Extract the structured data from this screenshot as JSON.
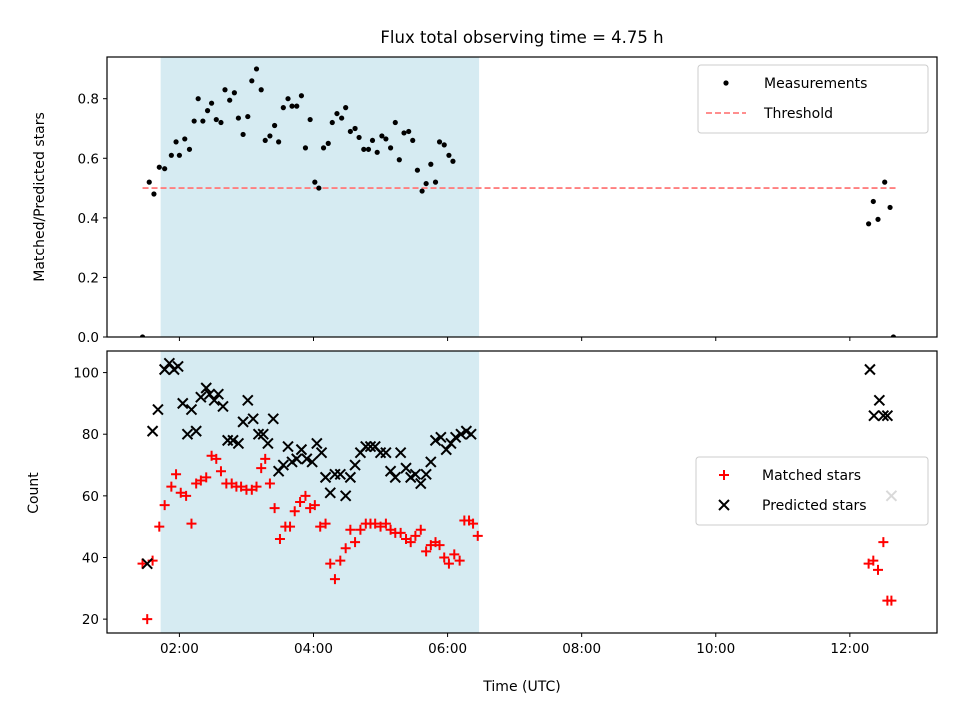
{
  "chart_data": [
    {
      "type": "scatter",
      "title": "Flux total observing time = 4.75 h",
      "xlabel": "",
      "ylabel": "Matched/Predicted stars",
      "xlim": [
        0.92,
        13.3
      ],
      "ylim": [
        0.0,
        0.94
      ],
      "yticks": [
        0.0,
        0.2,
        0.4,
        0.6,
        0.8
      ],
      "ytick_labels": [
        "0.0",
        "0.2",
        "0.4",
        "0.6",
        "0.8"
      ],
      "shaded_interval": {
        "start": 1.72,
        "end": 6.47,
        "color": "#add8e6"
      },
      "threshold": {
        "name": "Threshold",
        "value": 0.5,
        "x_range": [
          1.45,
          12.72
        ],
        "color": "#ff7f7f"
      },
      "legend_position": "top-right",
      "series": [
        {
          "name": "Measurements",
          "marker": "dot",
          "color": "#000000",
          "points": [
            [
              1.45,
              0.0
            ],
            [
              1.55,
              0.52
            ],
            [
              1.62,
              0.48
            ],
            [
              1.7,
              0.57
            ],
            [
              1.78,
              0.565
            ],
            [
              1.88,
              0.61
            ],
            [
              1.95,
              0.655
            ],
            [
              2.0,
              0.61
            ],
            [
              2.08,
              0.665
            ],
            [
              2.15,
              0.63
            ],
            [
              2.22,
              0.725
            ],
            [
              2.28,
              0.8
            ],
            [
              2.35,
              0.725
            ],
            [
              2.42,
              0.76
            ],
            [
              2.48,
              0.785
            ],
            [
              2.55,
              0.73
            ],
            [
              2.62,
              0.72
            ],
            [
              2.68,
              0.83
            ],
            [
              2.75,
              0.795
            ],
            [
              2.82,
              0.82
            ],
            [
              2.88,
              0.735
            ],
            [
              2.95,
              0.68
            ],
            [
              3.02,
              0.74
            ],
            [
              3.08,
              0.86
            ],
            [
              3.15,
              0.9
            ],
            [
              3.22,
              0.83
            ],
            [
              3.28,
              0.66
            ],
            [
              3.35,
              0.675
            ],
            [
              3.42,
              0.71
            ],
            [
              3.48,
              0.655
            ],
            [
              3.55,
              0.77
            ],
            [
              3.62,
              0.8
            ],
            [
              3.68,
              0.775
            ],
            [
              3.75,
              0.775
            ],
            [
              3.82,
              0.81
            ],
            [
              3.88,
              0.635
            ],
            [
              3.95,
              0.73
            ],
            [
              4.02,
              0.52
            ],
            [
              4.08,
              0.5
            ],
            [
              4.15,
              0.635
            ],
            [
              4.22,
              0.65
            ],
            [
              4.28,
              0.72
            ],
            [
              4.35,
              0.75
            ],
            [
              4.42,
              0.735
            ],
            [
              4.48,
              0.77
            ],
            [
              4.55,
              0.69
            ],
            [
              4.62,
              0.7
            ],
            [
              4.68,
              0.67
            ],
            [
              4.75,
              0.63
            ],
            [
              4.82,
              0.63
            ],
            [
              4.88,
              0.66
            ],
            [
              4.95,
              0.62
            ],
            [
              5.02,
              0.675
            ],
            [
              5.08,
              0.665
            ],
            [
              5.15,
              0.635
            ],
            [
              5.22,
              0.72
            ],
            [
              5.28,
              0.595
            ],
            [
              5.35,
              0.685
            ],
            [
              5.42,
              0.69
            ],
            [
              5.48,
              0.66
            ],
            [
              5.55,
              0.56
            ],
            [
              5.62,
              0.49
            ],
            [
              5.68,
              0.515
            ],
            [
              5.75,
              0.58
            ],
            [
              5.82,
              0.52
            ],
            [
              5.88,
              0.655
            ],
            [
              5.95,
              0.645
            ],
            [
              6.02,
              0.61
            ],
            [
              6.08,
              0.59
            ],
            [
              12.28,
              0.38
            ],
            [
              12.35,
              0.455
            ],
            [
              12.42,
              0.395
            ],
            [
              12.52,
              0.52
            ],
            [
              12.6,
              0.435
            ],
            [
              12.65,
              0.0
            ]
          ]
        }
      ]
    },
    {
      "type": "scatter",
      "title": "",
      "xlabel": "Time (UTC)",
      "ylabel": "Count",
      "xlim": [
        0.92,
        13.3
      ],
      "ylim": [
        15.5,
        107.0
      ],
      "xticks": [
        2,
        4,
        6,
        8,
        10,
        12
      ],
      "xtick_labels": [
        "02:00",
        "04:00",
        "06:00",
        "08:00",
        "10:00",
        "12:00"
      ],
      "yticks": [
        20,
        40,
        60,
        80,
        100
      ],
      "ytick_labels": [
        "20",
        "40",
        "60",
        "80",
        "100"
      ],
      "shaded_interval": {
        "start": 1.72,
        "end": 6.47,
        "color": "#add8e6"
      },
      "legend_position": "center-right",
      "series": [
        {
          "name": "Matched stars",
          "marker": "plus",
          "color": "#ff0000",
          "points": [
            [
              1.45,
              38
            ],
            [
              1.52,
              20
            ],
            [
              1.6,
              39
            ],
            [
              1.7,
              50
            ],
            [
              1.78,
              57
            ],
            [
              1.88,
              63
            ],
            [
              1.95,
              67
            ],
            [
              2.02,
              61
            ],
            [
              2.1,
              60
            ],
            [
              2.18,
              51
            ],
            [
              2.25,
              64
            ],
            [
              2.32,
              65
            ],
            [
              2.4,
              66
            ],
            [
              2.48,
              73
            ],
            [
              2.55,
              72
            ],
            [
              2.62,
              68
            ],
            [
              2.7,
              64
            ],
            [
              2.78,
              64
            ],
            [
              2.85,
              63
            ],
            [
              2.92,
              63
            ],
            [
              3.0,
              62
            ],
            [
              3.08,
              62
            ],
            [
              3.15,
              63
            ],
            [
              3.22,
              69
            ],
            [
              3.28,
              72
            ],
            [
              3.35,
              64
            ],
            [
              3.42,
              56
            ],
            [
              3.5,
              46
            ],
            [
              3.58,
              50
            ],
            [
              3.65,
              50
            ],
            [
              3.72,
              55
            ],
            [
              3.8,
              58
            ],
            [
              3.88,
              60
            ],
            [
              3.95,
              56
            ],
            [
              4.02,
              57
            ],
            [
              4.1,
              50
            ],
            [
              4.18,
              51
            ],
            [
              4.25,
              38
            ],
            [
              4.32,
              33
            ],
            [
              4.4,
              39
            ],
            [
              4.48,
              43
            ],
            [
              4.55,
              49
            ],
            [
              4.62,
              45
            ],
            [
              4.7,
              49
            ],
            [
              4.78,
              51
            ],
            [
              4.85,
              51
            ],
            [
              4.92,
              51
            ],
            [
              5.0,
              50
            ],
            [
              5.08,
              51
            ],
            [
              5.15,
              49
            ],
            [
              5.22,
              48
            ],
            [
              5.3,
              48
            ],
            [
              5.38,
              46
            ],
            [
              5.45,
              45
            ],
            [
              5.52,
              47
            ],
            [
              5.6,
              49
            ],
            [
              5.68,
              42
            ],
            [
              5.75,
              44
            ],
            [
              5.82,
              45
            ],
            [
              5.88,
              44
            ],
            [
              5.95,
              40
            ],
            [
              6.02,
              38
            ],
            [
              6.1,
              41
            ],
            [
              6.18,
              39
            ],
            [
              6.25,
              52
            ],
            [
              6.32,
              52
            ],
            [
              6.38,
              51
            ],
            [
              6.45,
              47
            ],
            [
              12.28,
              38
            ],
            [
              12.35,
              39
            ],
            [
              12.42,
              36
            ],
            [
              12.5,
              45
            ],
            [
              12.56,
              26
            ],
            [
              12.62,
              26
            ]
          ]
        },
        {
          "name": "Predicted stars",
          "marker": "x",
          "color": "#000000",
          "points": [
            [
              1.52,
              38
            ],
            [
              1.6,
              81
            ],
            [
              1.68,
              88
            ],
            [
              1.78,
              101
            ],
            [
              1.85,
              103
            ],
            [
              1.92,
              101
            ],
            [
              1.98,
              102
            ],
            [
              2.05,
              90
            ],
            [
              2.12,
              80
            ],
            [
              2.18,
              88
            ],
            [
              2.25,
              81
            ],
            [
              2.32,
              92
            ],
            [
              2.4,
              95
            ],
            [
              2.45,
              93
            ],
            [
              2.52,
              91
            ],
            [
              2.58,
              93
            ],
            [
              2.65,
              89
            ],
            [
              2.72,
              78
            ],
            [
              2.8,
              78
            ],
            [
              2.88,
              77
            ],
            [
              2.95,
              84
            ],
            [
              3.02,
              91
            ],
            [
              3.1,
              85
            ],
            [
              3.18,
              80
            ],
            [
              3.25,
              80
            ],
            [
              3.32,
              77
            ],
            [
              3.4,
              85
            ],
            [
              3.48,
              68
            ],
            [
              3.55,
              70
            ],
            [
              3.62,
              76
            ],
            [
              3.68,
              71
            ],
            [
              3.75,
              72
            ],
            [
              3.82,
              75
            ],
            [
              3.9,
              72
            ],
            [
              3.98,
              71
            ],
            [
              4.05,
              77
            ],
            [
              4.12,
              74
            ],
            [
              4.18,
              66
            ],
            [
              4.25,
              61
            ],
            [
              4.32,
              67
            ],
            [
              4.4,
              67
            ],
            [
              4.48,
              60
            ],
            [
              4.55,
              66
            ],
            [
              4.62,
              70
            ],
            [
              4.7,
              74
            ],
            [
              4.78,
              76
            ],
            [
              4.85,
              76
            ],
            [
              4.92,
              76
            ],
            [
              5.0,
              74
            ],
            [
              5.08,
              74
            ],
            [
              5.15,
              68
            ],
            [
              5.22,
              66
            ],
            [
              5.3,
              74
            ],
            [
              5.38,
              69
            ],
            [
              5.45,
              66
            ],
            [
              5.52,
              67
            ],
            [
              5.6,
              64
            ],
            [
              5.68,
              67
            ],
            [
              5.75,
              71
            ],
            [
              5.82,
              78
            ],
            [
              5.9,
              79
            ],
            [
              5.98,
              75
            ],
            [
              6.05,
              77
            ],
            [
              6.12,
              79
            ],
            [
              6.2,
              80
            ],
            [
              6.28,
              81
            ],
            [
              6.35,
              80
            ],
            [
              12.3,
              101
            ],
            [
              12.36,
              86
            ],
            [
              12.44,
              91
            ],
            [
              12.5,
              86
            ],
            [
              12.56,
              86
            ],
            [
              12.62,
              60
            ]
          ]
        }
      ]
    }
  ]
}
